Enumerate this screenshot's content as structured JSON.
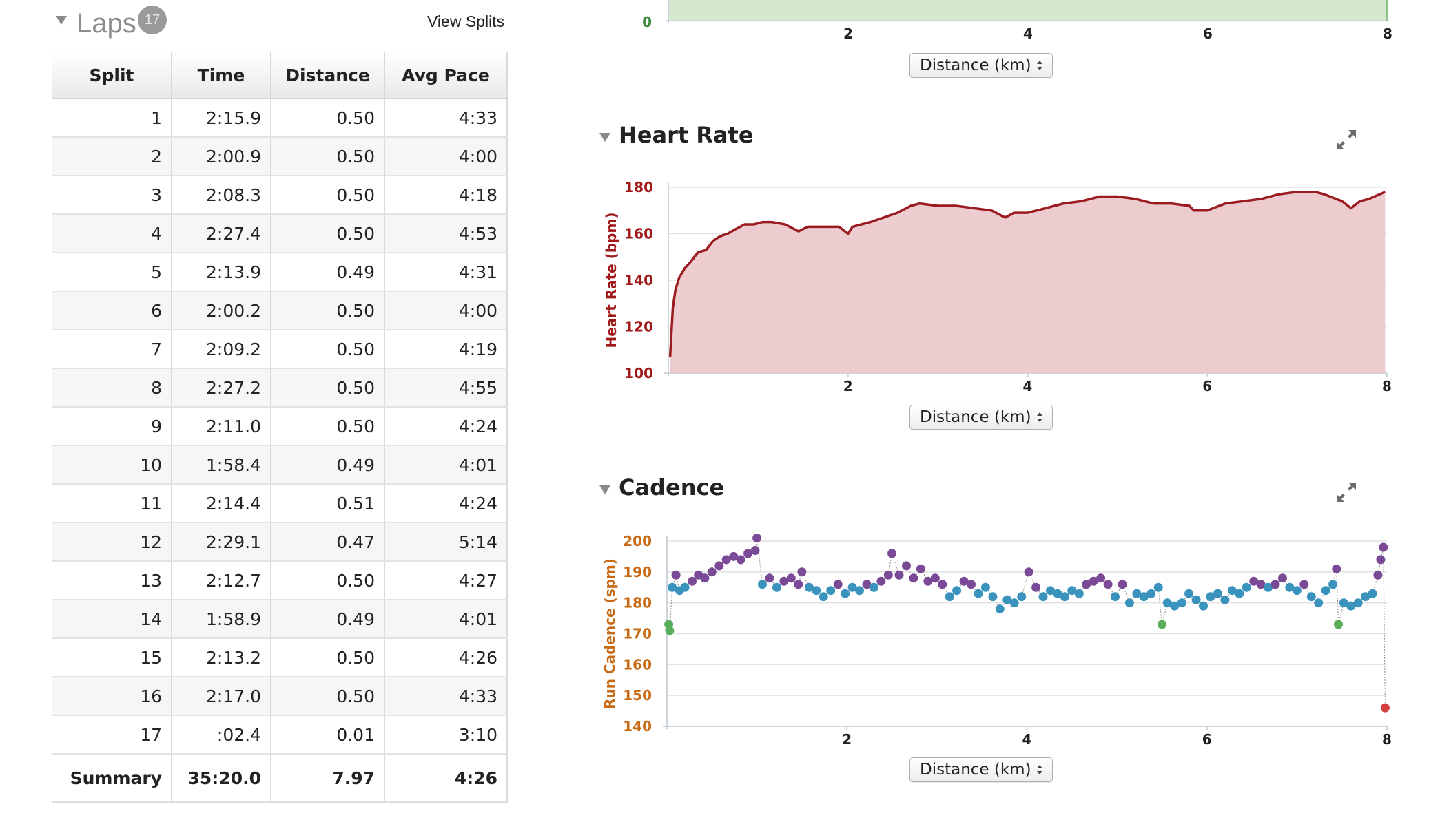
{
  "laps": {
    "title": "Laps",
    "count": "17",
    "view_splits_label": "View Splits",
    "columns": [
      "Split",
      "Time",
      "Distance",
      "Avg Pace"
    ],
    "rows": [
      [
        "1",
        "2:15.9",
        "0.50",
        "4:33"
      ],
      [
        "2",
        "2:00.9",
        "0.50",
        "4:00"
      ],
      [
        "3",
        "2:08.3",
        "0.50",
        "4:18"
      ],
      [
        "4",
        "2:27.4",
        "0.50",
        "4:53"
      ],
      [
        "5",
        "2:13.9",
        "0.49",
        "4:31"
      ],
      [
        "6",
        "2:00.2",
        "0.50",
        "4:00"
      ],
      [
        "7",
        "2:09.2",
        "0.50",
        "4:19"
      ],
      [
        "8",
        "2:27.2",
        "0.50",
        "4:55"
      ],
      [
        "9",
        "2:11.0",
        "0.50",
        "4:24"
      ],
      [
        "10",
        "1:58.4",
        "0.49",
        "4:01"
      ],
      [
        "11",
        "2:14.4",
        "0.51",
        "4:24"
      ],
      [
        "12",
        "2:29.1",
        "0.47",
        "5:14"
      ],
      [
        "13",
        "2:12.7",
        "0.50",
        "4:27"
      ],
      [
        "14",
        "1:58.9",
        "0.49",
        "4:01"
      ],
      [
        "15",
        "2:13.2",
        "0.50",
        "4:26"
      ],
      [
        "16",
        "2:17.0",
        "0.50",
        "4:33"
      ],
      [
        "17",
        ":02.4",
        "0.01",
        "3:10"
      ]
    ],
    "summary": [
      "Summary",
      "35:20.0",
      "7.97",
      "4:26"
    ]
  },
  "top_chart": {
    "select_label": "Distance (km)",
    "y_tick": "0",
    "x_ticks": [
      "2",
      "4",
      "6",
      "8"
    ],
    "fill_color": "#d4e8d0",
    "tick_color": "#3a8a3a"
  },
  "heart_rate": {
    "title": "Heart Rate",
    "select_label": "Distance (km)"
  },
  "cadence": {
    "title": "Cadence",
    "select_label": "Distance (km)"
  },
  "chart_data": [
    {
      "type": "line",
      "name": "heart-rate",
      "title": "Heart Rate",
      "xlabel": "",
      "ylabel": "Heart Rate (bpm)",
      "xlim": [
        0,
        8
      ],
      "ylim": [
        100,
        180
      ],
      "x_ticks": [
        2,
        4,
        6,
        8
      ],
      "y_ticks": [
        100,
        120,
        140,
        160,
        180
      ],
      "fill": true,
      "line_color": "#9b1c20",
      "fill_color": "#ecc9cc",
      "axis_color": "#a01818",
      "grid": true,
      "x": [
        0.02,
        0.05,
        0.08,
        0.12,
        0.18,
        0.25,
        0.33,
        0.42,
        0.5,
        0.58,
        0.66,
        0.75,
        0.85,
        0.95,
        1.05,
        1.15,
        1.3,
        1.45,
        1.55,
        1.6,
        1.7,
        1.8,
        1.9,
        2.0,
        2.05,
        2.15,
        2.25,
        2.4,
        2.55,
        2.7,
        2.8,
        3.0,
        3.2,
        3.4,
        3.6,
        3.75,
        3.85,
        4.0,
        4.2,
        4.4,
        4.6,
        4.8,
        5.0,
        5.2,
        5.4,
        5.6,
        5.8,
        5.85,
        6.0,
        6.2,
        6.4,
        6.6,
        6.8,
        7.0,
        7.2,
        7.3,
        7.5,
        7.6,
        7.7,
        7.8,
        7.98
      ],
      "y": [
        107,
        128,
        136,
        141,
        145,
        148,
        152,
        153,
        157,
        159,
        160,
        162,
        164,
        164,
        165,
        165,
        164,
        161,
        163,
        163,
        163,
        163,
        163,
        160,
        163,
        164,
        165,
        167,
        169,
        172,
        173,
        172,
        172,
        171,
        170,
        167,
        169,
        169,
        171,
        173,
        174,
        176,
        176,
        175,
        173,
        173,
        172,
        170,
        170,
        173,
        174,
        175,
        177,
        178,
        178,
        177,
        174,
        171,
        174,
        175,
        178
      ]
    },
    {
      "type": "scatter",
      "name": "cadence",
      "title": "Cadence",
      "xlabel": "",
      "ylabel": "Run Cadence (spm)",
      "xlim": [
        0,
        8
      ],
      "ylim": [
        140,
        200
      ],
      "x_ticks": [
        2,
        4,
        6,
        8
      ],
      "y_ticks": [
        140,
        150,
        160,
        170,
        180,
        190,
        200
      ],
      "axis_color": "#c86a14",
      "grid": true,
      "colors": {
        "purple": "#7b4a96",
        "blue": "#3a93bd",
        "green": "#59ad5b",
        "red": "#d44040"
      },
      "points": [
        {
          "x": 0.02,
          "y": 173,
          "c": "green"
        },
        {
          "x": 0.03,
          "y": 171,
          "c": "green"
        },
        {
          "x": 0.06,
          "y": 185,
          "c": "blue"
        },
        {
          "x": 0.1,
          "y": 189,
          "c": "purple"
        },
        {
          "x": 0.14,
          "y": 184,
          "c": "blue"
        },
        {
          "x": 0.2,
          "y": 185,
          "c": "blue"
        },
        {
          "x": 0.28,
          "y": 187,
          "c": "purple"
        },
        {
          "x": 0.35,
          "y": 189,
          "c": "purple"
        },
        {
          "x": 0.42,
          "y": 188,
          "c": "purple"
        },
        {
          "x": 0.5,
          "y": 190,
          "c": "purple"
        },
        {
          "x": 0.58,
          "y": 192,
          "c": "purple"
        },
        {
          "x": 0.66,
          "y": 194,
          "c": "purple"
        },
        {
          "x": 0.74,
          "y": 195,
          "c": "purple"
        },
        {
          "x": 0.82,
          "y": 194,
          "c": "purple"
        },
        {
          "x": 0.9,
          "y": 196,
          "c": "purple"
        },
        {
          "x": 0.98,
          "y": 197,
          "c": "purple"
        },
        {
          "x": 1.0,
          "y": 201,
          "c": "purple"
        },
        {
          "x": 1.06,
          "y": 186,
          "c": "blue"
        },
        {
          "x": 1.14,
          "y": 188,
          "c": "purple"
        },
        {
          "x": 1.22,
          "y": 185,
          "c": "blue"
        },
        {
          "x": 1.3,
          "y": 187,
          "c": "purple"
        },
        {
          "x": 1.38,
          "y": 188,
          "c": "purple"
        },
        {
          "x": 1.46,
          "y": 186,
          "c": "purple"
        },
        {
          "x": 1.5,
          "y": 190,
          "c": "purple"
        },
        {
          "x": 1.58,
          "y": 185,
          "c": "blue"
        },
        {
          "x": 1.66,
          "y": 184,
          "c": "blue"
        },
        {
          "x": 1.74,
          "y": 182,
          "c": "blue"
        },
        {
          "x": 1.82,
          "y": 184,
          "c": "blue"
        },
        {
          "x": 1.9,
          "y": 186,
          "c": "purple"
        },
        {
          "x": 1.98,
          "y": 183,
          "c": "blue"
        },
        {
          "x": 2.06,
          "y": 185,
          "c": "blue"
        },
        {
          "x": 2.14,
          "y": 184,
          "c": "blue"
        },
        {
          "x": 2.22,
          "y": 186,
          "c": "purple"
        },
        {
          "x": 2.3,
          "y": 185,
          "c": "blue"
        },
        {
          "x": 2.38,
          "y": 187,
          "c": "purple"
        },
        {
          "x": 2.46,
          "y": 189,
          "c": "purple"
        },
        {
          "x": 2.5,
          "y": 196,
          "c": "purple"
        },
        {
          "x": 2.58,
          "y": 189,
          "c": "purple"
        },
        {
          "x": 2.66,
          "y": 192,
          "c": "purple"
        },
        {
          "x": 2.74,
          "y": 188,
          "c": "purple"
        },
        {
          "x": 2.82,
          "y": 191,
          "c": "purple"
        },
        {
          "x": 2.9,
          "y": 187,
          "c": "purple"
        },
        {
          "x": 2.98,
          "y": 188,
          "c": "purple"
        },
        {
          "x": 3.06,
          "y": 186,
          "c": "purple"
        },
        {
          "x": 3.14,
          "y": 182,
          "c": "blue"
        },
        {
          "x": 3.22,
          "y": 184,
          "c": "blue"
        },
        {
          "x": 3.3,
          "y": 187,
          "c": "purple"
        },
        {
          "x": 3.38,
          "y": 186,
          "c": "purple"
        },
        {
          "x": 3.46,
          "y": 183,
          "c": "blue"
        },
        {
          "x": 3.54,
          "y": 185,
          "c": "blue"
        },
        {
          "x": 3.62,
          "y": 182,
          "c": "blue"
        },
        {
          "x": 3.7,
          "y": 178,
          "c": "blue"
        },
        {
          "x": 3.78,
          "y": 181,
          "c": "blue"
        },
        {
          "x": 3.86,
          "y": 180,
          "c": "blue"
        },
        {
          "x": 3.94,
          "y": 182,
          "c": "blue"
        },
        {
          "x": 4.02,
          "y": 190,
          "c": "purple"
        },
        {
          "x": 4.1,
          "y": 185,
          "c": "purple"
        },
        {
          "x": 4.18,
          "y": 182,
          "c": "blue"
        },
        {
          "x": 4.26,
          "y": 184,
          "c": "blue"
        },
        {
          "x": 4.34,
          "y": 183,
          "c": "blue"
        },
        {
          "x": 4.42,
          "y": 182,
          "c": "blue"
        },
        {
          "x": 4.5,
          "y": 184,
          "c": "blue"
        },
        {
          "x": 4.58,
          "y": 183,
          "c": "blue"
        },
        {
          "x": 4.66,
          "y": 186,
          "c": "purple"
        },
        {
          "x": 4.74,
          "y": 187,
          "c": "purple"
        },
        {
          "x": 4.82,
          "y": 188,
          "c": "purple"
        },
        {
          "x": 4.9,
          "y": 186,
          "c": "purple"
        },
        {
          "x": 4.98,
          "y": 182,
          "c": "blue"
        },
        {
          "x": 5.06,
          "y": 186,
          "c": "purple"
        },
        {
          "x": 5.14,
          "y": 180,
          "c": "blue"
        },
        {
          "x": 5.22,
          "y": 183,
          "c": "blue"
        },
        {
          "x": 5.3,
          "y": 182,
          "c": "blue"
        },
        {
          "x": 5.38,
          "y": 183,
          "c": "blue"
        },
        {
          "x": 5.46,
          "y": 185,
          "c": "blue"
        },
        {
          "x": 5.5,
          "y": 173,
          "c": "green"
        },
        {
          "x": 5.56,
          "y": 180,
          "c": "blue"
        },
        {
          "x": 5.64,
          "y": 179,
          "c": "blue"
        },
        {
          "x": 5.72,
          "y": 180,
          "c": "blue"
        },
        {
          "x": 5.8,
          "y": 183,
          "c": "blue"
        },
        {
          "x": 5.88,
          "y": 181,
          "c": "blue"
        },
        {
          "x": 5.96,
          "y": 179,
          "c": "blue"
        },
        {
          "x": 6.04,
          "y": 182,
          "c": "blue"
        },
        {
          "x": 6.12,
          "y": 183,
          "c": "blue"
        },
        {
          "x": 6.2,
          "y": 181,
          "c": "blue"
        },
        {
          "x": 6.28,
          "y": 184,
          "c": "blue"
        },
        {
          "x": 6.36,
          "y": 183,
          "c": "blue"
        },
        {
          "x": 6.44,
          "y": 185,
          "c": "blue"
        },
        {
          "x": 6.52,
          "y": 187,
          "c": "purple"
        },
        {
          "x": 6.6,
          "y": 186,
          "c": "purple"
        },
        {
          "x": 6.68,
          "y": 185,
          "c": "blue"
        },
        {
          "x": 6.76,
          "y": 186,
          "c": "purple"
        },
        {
          "x": 6.84,
          "y": 188,
          "c": "purple"
        },
        {
          "x": 6.92,
          "y": 185,
          "c": "blue"
        },
        {
          "x": 7.0,
          "y": 184,
          "c": "blue"
        },
        {
          "x": 7.08,
          "y": 186,
          "c": "purple"
        },
        {
          "x": 7.16,
          "y": 182,
          "c": "blue"
        },
        {
          "x": 7.24,
          "y": 180,
          "c": "blue"
        },
        {
          "x": 7.32,
          "y": 184,
          "c": "blue"
        },
        {
          "x": 7.4,
          "y": 186,
          "c": "blue"
        },
        {
          "x": 7.44,
          "y": 191,
          "c": "purple"
        },
        {
          "x": 7.46,
          "y": 173,
          "c": "green"
        },
        {
          "x": 7.52,
          "y": 180,
          "c": "blue"
        },
        {
          "x": 7.6,
          "y": 179,
          "c": "blue"
        },
        {
          "x": 7.68,
          "y": 180,
          "c": "blue"
        },
        {
          "x": 7.76,
          "y": 182,
          "c": "blue"
        },
        {
          "x": 7.84,
          "y": 183,
          "c": "blue"
        },
        {
          "x": 7.9,
          "y": 189,
          "c": "purple"
        },
        {
          "x": 7.93,
          "y": 194,
          "c": "purple"
        },
        {
          "x": 7.96,
          "y": 198,
          "c": "purple"
        },
        {
          "x": 7.98,
          "y": 146,
          "c": "red"
        }
      ]
    }
  ]
}
